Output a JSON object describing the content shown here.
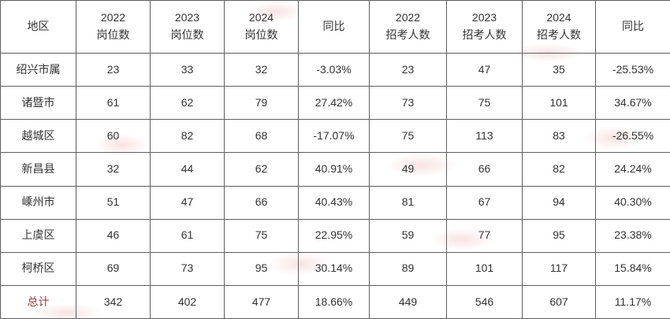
{
  "colors": {
    "text": "#333333",
    "border": "#5f5f5f",
    "total_label": "#9c3b3b",
    "watermark": "#ebA0a0"
  },
  "chart_data": {
    "type": "table",
    "columns": [
      "地区",
      "2022\n岗位数",
      "2023\n岗位数",
      "2024\n岗位数",
      "同比",
      "2022\n招考人数",
      "2023\n招考人数",
      "2024\n招考人数",
      "同比"
    ],
    "rows": [
      [
        "绍兴市属",
        "23",
        "33",
        "32",
        "-3.03%",
        "23",
        "47",
        "35",
        "-25.53%"
      ],
      [
        "诸暨市",
        "61",
        "62",
        "79",
        "27.42%",
        "73",
        "75",
        "101",
        "34.67%"
      ],
      [
        "越城区",
        "60",
        "82",
        "68",
        "-17.07%",
        "75",
        "113",
        "83",
        "-26.55%"
      ],
      [
        "新昌县",
        "32",
        "44",
        "62",
        "40.91%",
        "49",
        "66",
        "82",
        "24.24%"
      ],
      [
        "嵊州市",
        "51",
        "47",
        "66",
        "40.43%",
        "81",
        "67",
        "94",
        "40.30%"
      ],
      [
        "上虞区",
        "46",
        "61",
        "75",
        "22.95%",
        "59",
        "77",
        "95",
        "23.38%"
      ],
      [
        "柯桥区",
        "69",
        "73",
        "95",
        "30.14%",
        "89",
        "101",
        "117",
        "15.84%"
      ]
    ],
    "total_row": [
      "总计",
      "342",
      "402",
      "477",
      "18.66%",
      "449",
      "546",
      "607",
      "11.17%"
    ]
  }
}
